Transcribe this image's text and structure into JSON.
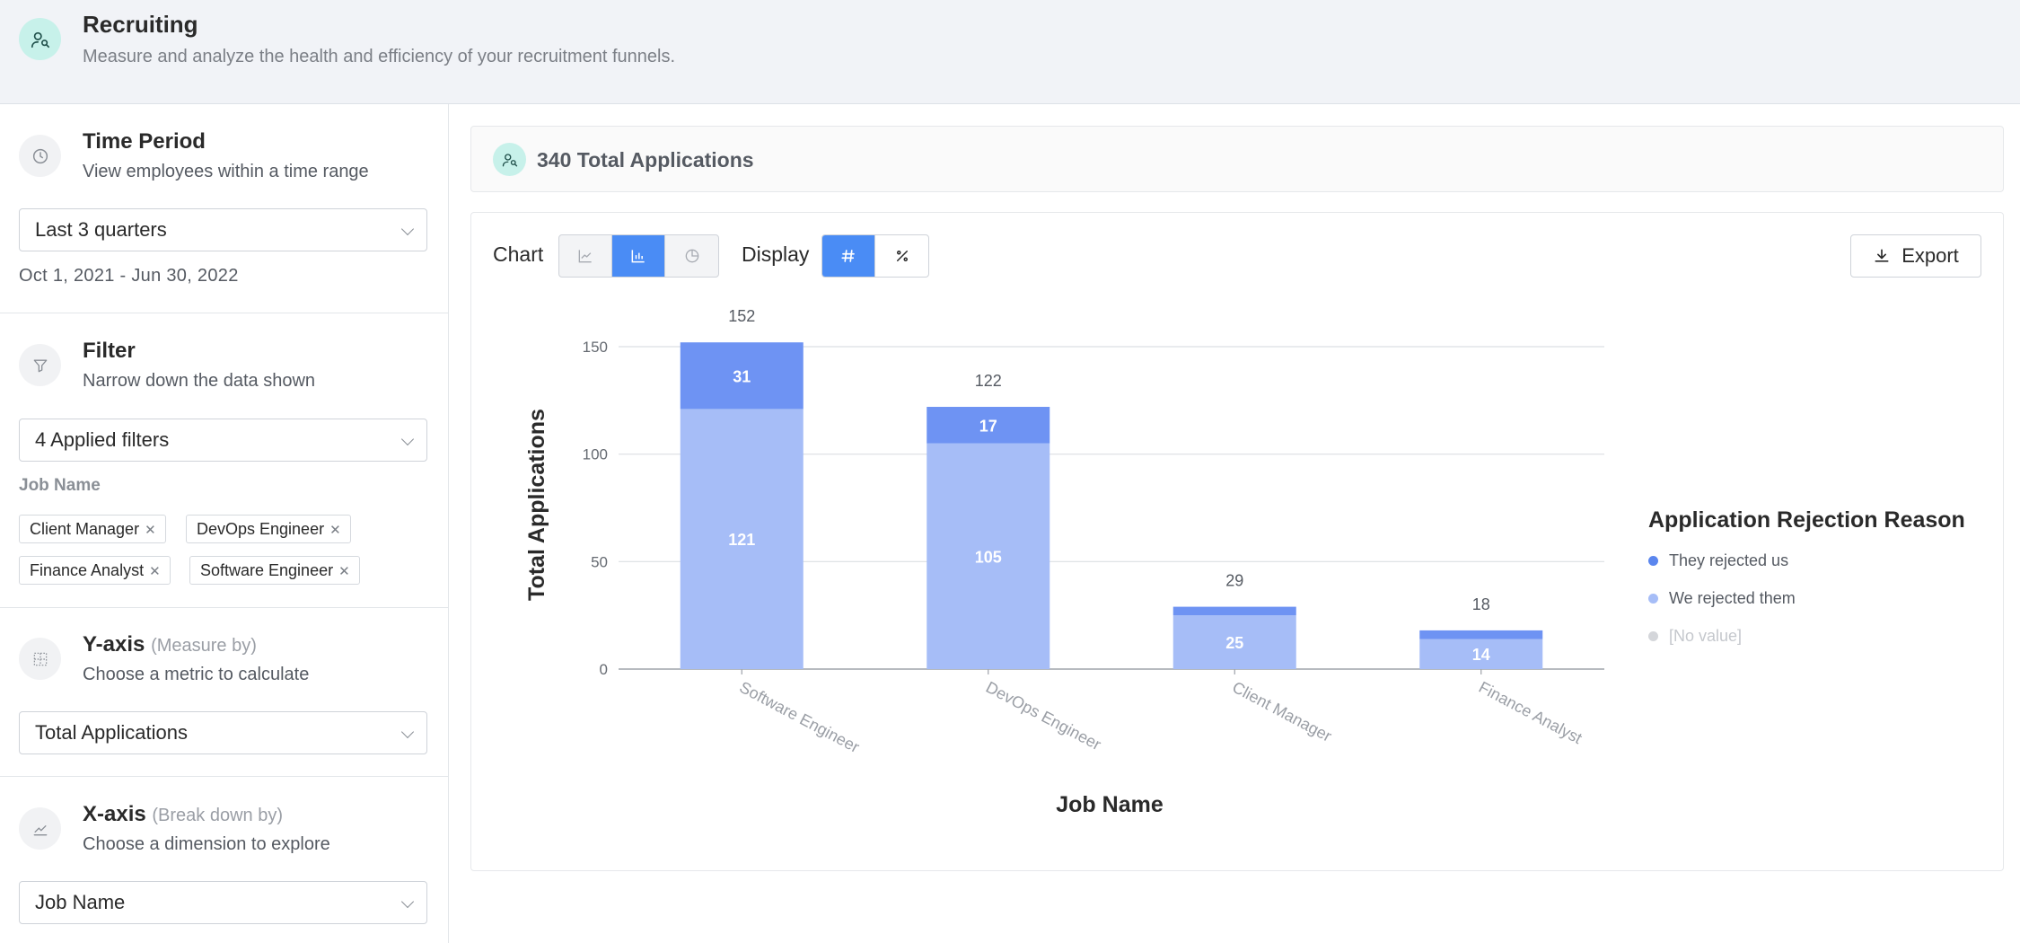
{
  "header": {
    "title": "Recruiting",
    "subtitle": "Measure and analyze the health and efficiency of your recruitment funnels."
  },
  "sidebar": {
    "time_period": {
      "title": "Time Period",
      "subtitle": "View employees within a time range",
      "selected": "Last 3 quarters",
      "date_range": "Oct 1, 2021 - Jun 30, 2022"
    },
    "filter": {
      "title": "Filter",
      "subtitle": "Narrow down the data shown",
      "selected": "4 Applied filters",
      "group_label": "Job Name",
      "chips": [
        "Client Manager",
        "DevOps Engineer",
        "Finance Analyst",
        "Software Engineer"
      ]
    },
    "y_axis": {
      "title": "Y-axis",
      "title_hint": "(Measure by)",
      "subtitle": "Choose a metric to calculate",
      "selected": "Total Applications"
    },
    "x_axis": {
      "title": "X-axis",
      "title_hint": "(Break down by)",
      "subtitle": "Choose a dimension to explore",
      "selected": "Job Name"
    }
  },
  "summary": {
    "text": "340 Total Applications"
  },
  "toolbar": {
    "chart_label": "Chart",
    "display_label": "Display",
    "export_label": "Export",
    "chart_types": [
      "line-chart-icon",
      "bar-chart-icon",
      "pie-chart-icon"
    ],
    "chart_selected": "bar",
    "display_modes": [
      "hash-icon",
      "percent-icon"
    ],
    "display_selected": "count"
  },
  "colors": {
    "accent": "#4a8cf5",
    "series_top": "#6e93f3",
    "series_bottom": "#a6bdf7",
    "no_value": "#d4d6da"
  },
  "chart_data": {
    "type": "bar",
    "stacked": true,
    "categories": [
      "Software Engineer",
      "DevOps Engineer",
      "Client Manager",
      "Finance Analyst"
    ],
    "series": [
      {
        "name": "We rejected them",
        "values": [
          121,
          105,
          25,
          14
        ],
        "color": "#a6bdf7"
      },
      {
        "name": "They rejected us",
        "values": [
          31,
          17,
          4,
          4
        ],
        "color": "#6e93f3"
      }
    ],
    "totals": [
      152,
      122,
      29,
      18
    ],
    "xlabel": "Job Name",
    "ylabel": "Total Applications",
    "ylim": [
      0,
      150
    ],
    "yticks": [
      0,
      50,
      100,
      150
    ],
    "grid": true,
    "legend": {
      "title": "Application Rejection Reason",
      "position": "right",
      "items": [
        {
          "name": "They rejected us",
          "color": "#5b86ee"
        },
        {
          "name": "We rejected them",
          "color": "#a6bdf7"
        },
        {
          "name": "[No value]",
          "color": "#d4d6da"
        }
      ]
    }
  }
}
